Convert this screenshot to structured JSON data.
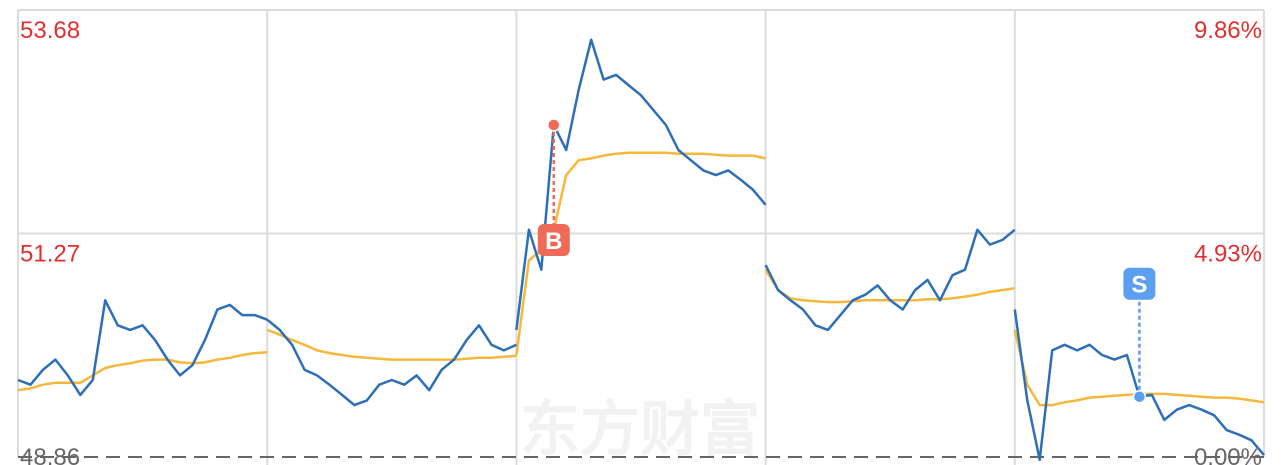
{
  "chart_data": {
    "type": "line",
    "watermark": "东方财富",
    "series": [
      {
        "name": "price",
        "color": "#2f6fb7",
        "values": [
          49.69,
          49.64,
          49.8,
          49.91,
          49.74,
          49.53,
          49.69,
          50.55,
          50.28,
          50.23,
          50.28,
          50.12,
          49.91,
          49.74,
          49.85,
          50.12,
          50.45,
          50.5,
          50.39,
          50.39,
          50.34,
          null,
          50.34,
          50.23,
          50.07,
          49.8,
          49.74,
          49.64,
          49.53,
          49.42,
          49.47,
          49.64,
          49.69,
          49.64,
          49.74,
          49.58,
          49.8,
          49.91,
          50.12,
          50.28,
          50.07,
          50.01,
          50.07,
          null,
          50.23,
          51.31,
          50.88,
          52.44,
          52.17,
          52.82,
          53.36,
          52.93,
          52.98,
          52.87,
          52.76,
          52.6,
          52.44,
          52.17,
          52.06,
          51.95,
          51.9,
          51.95,
          51.85,
          51.74,
          51.58,
          null,
          50.93,
          50.66,
          50.55,
          50.45,
          50.28,
          50.23,
          50.39,
          50.55,
          50.61,
          50.71,
          50.55,
          50.45,
          50.66,
          50.77,
          50.55,
          50.82,
          50.88,
          51.31,
          51.15,
          51.2,
          51.31,
          null,
          50.45,
          49.47,
          48.83,
          50.01,
          50.07,
          50.01,
          50.07,
          49.96,
          49.91,
          49.96,
          49.51,
          49.53,
          49.26,
          49.37,
          49.42,
          49.37,
          49.31,
          49.15,
          49.1,
          49.04,
          48.88
        ]
      },
      {
        "name": "average",
        "color": "#f5b83d",
        "values": [
          49.58,
          49.6,
          49.64,
          49.66,
          49.66,
          49.66,
          49.74,
          49.82,
          49.85,
          49.87,
          49.9,
          49.91,
          49.91,
          49.88,
          49.87,
          49.88,
          49.91,
          49.93,
          49.96,
          49.98,
          49.99,
          null,
          50.23,
          50.18,
          50.12,
          50.07,
          50.01,
          49.98,
          49.96,
          49.94,
          49.93,
          49.92,
          49.91,
          49.91,
          49.91,
          49.91,
          49.91,
          49.91,
          49.92,
          49.93,
          49.93,
          49.94,
          49.95,
          null,
          49.96,
          50.98,
          51.09,
          51.31,
          51.9,
          52.06,
          52.08,
          52.11,
          52.13,
          52.14,
          52.14,
          52.14,
          52.14,
          52.13,
          52.13,
          52.13,
          52.12,
          52.11,
          52.11,
          52.11,
          52.08,
          null,
          50.88,
          50.66,
          50.57,
          50.55,
          50.54,
          50.53,
          50.53,
          50.54,
          50.55,
          50.55,
          50.55,
          50.55,
          50.55,
          50.56,
          50.56,
          50.57,
          50.59,
          50.61,
          50.64,
          50.66,
          50.68,
          null,
          50.23,
          49.64,
          49.42,
          49.42,
          49.45,
          49.47,
          49.5,
          49.51,
          49.52,
          49.53,
          49.54,
          49.54,
          49.54,
          49.53,
          49.52,
          49.51,
          49.5,
          49.5,
          49.49,
          49.47,
          49.45
        ]
      }
    ],
    "markers": [
      {
        "label": "B",
        "color": "#f06a5a",
        "value": 52.44,
        "at_point": 47
      },
      {
        "label": "S",
        "color": "#5a9ff0",
        "value": 49.51,
        "at_point": 98
      }
    ],
    "ylim": [
      48.86,
      53.68
    ],
    "yticks": [
      48.86,
      51.27,
      53.68
    ],
    "y2lim": [
      0,
      9.86
    ],
    "y2ticks": [
      {
        "value": 0,
        "label": "0.00%"
      },
      {
        "value": 4.93,
        "label": "4.93%"
      },
      {
        "value": 9.86,
        "label": "9.86%"
      }
    ],
    "tick_color": "#e0302f",
    "grid": true
  }
}
